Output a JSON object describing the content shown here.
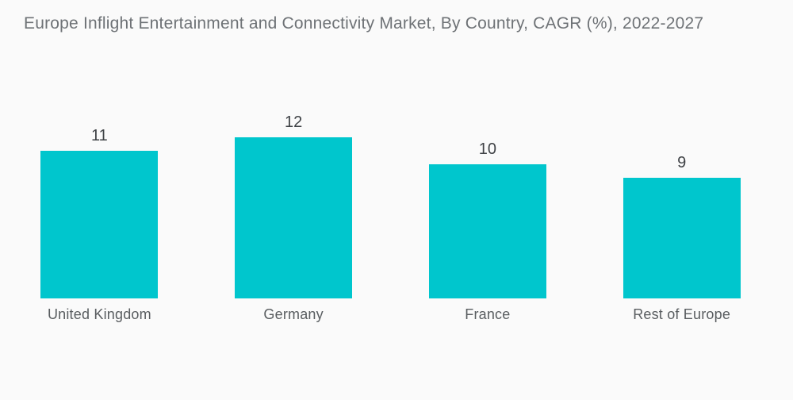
{
  "title": "Europe Inflight Entertainment and Connectivity Market, By Country, CAGR (%), 2022-2027",
  "chart_data": {
    "type": "bar",
    "title": "Europe Inflight Entertainment and Connectivity Market, By Country, CAGR (%), 2022-2027",
    "categories": [
      "United Kingdom",
      "Germany",
      "France",
      "Rest of Europe"
    ],
    "values": [
      11,
      12,
      10,
      9
    ],
    "xlabel": "",
    "ylabel": "",
    "ylim": [
      0,
      12
    ],
    "grid": false,
    "legend": false,
    "value_labels_shown": true,
    "bar_color": "#00c6cd",
    "value_label_color": "#3f4246",
    "category_label_color": "#595d60",
    "title_color": "#6e7276",
    "background_color": "#fafafa"
  }
}
